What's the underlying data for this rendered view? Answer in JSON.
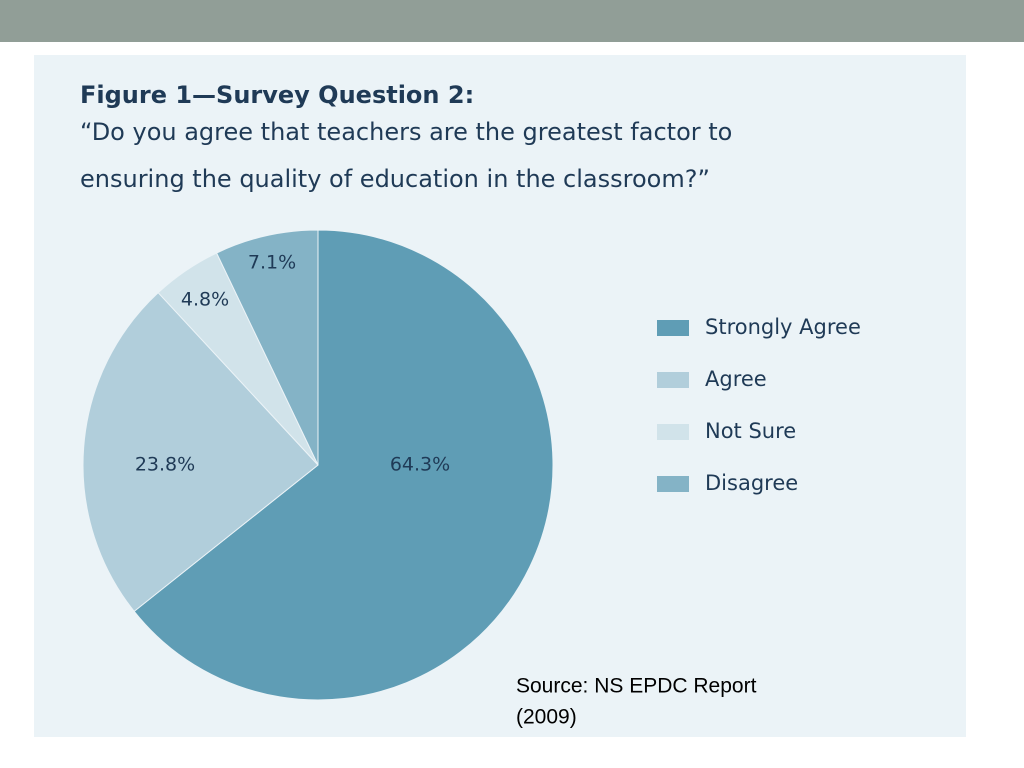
{
  "chart_data": {
    "type": "pie",
    "title": "Figure 1—Survey Question 2:",
    "subtitle_lines": [
      "“Do you agree that teachers are the greatest factor to",
      "ensuring the quality of education in the classroom?”"
    ],
    "categories": [
      "Strongly Agree",
      "Agree",
      "Not Sure",
      "Disagree"
    ],
    "values": [
      64.3,
      23.8,
      4.8,
      7.1
    ],
    "value_labels": [
      "64.3%",
      "23.8%",
      "4.8%",
      "7.1%"
    ],
    "colors": [
      "#5f9db5",
      "#b1cedb",
      "#d1e3ea",
      "#84b3c6"
    ],
    "legend": "right",
    "source_lines": [
      "Source: NS EPDC Report",
      "(2009)"
    ]
  }
}
